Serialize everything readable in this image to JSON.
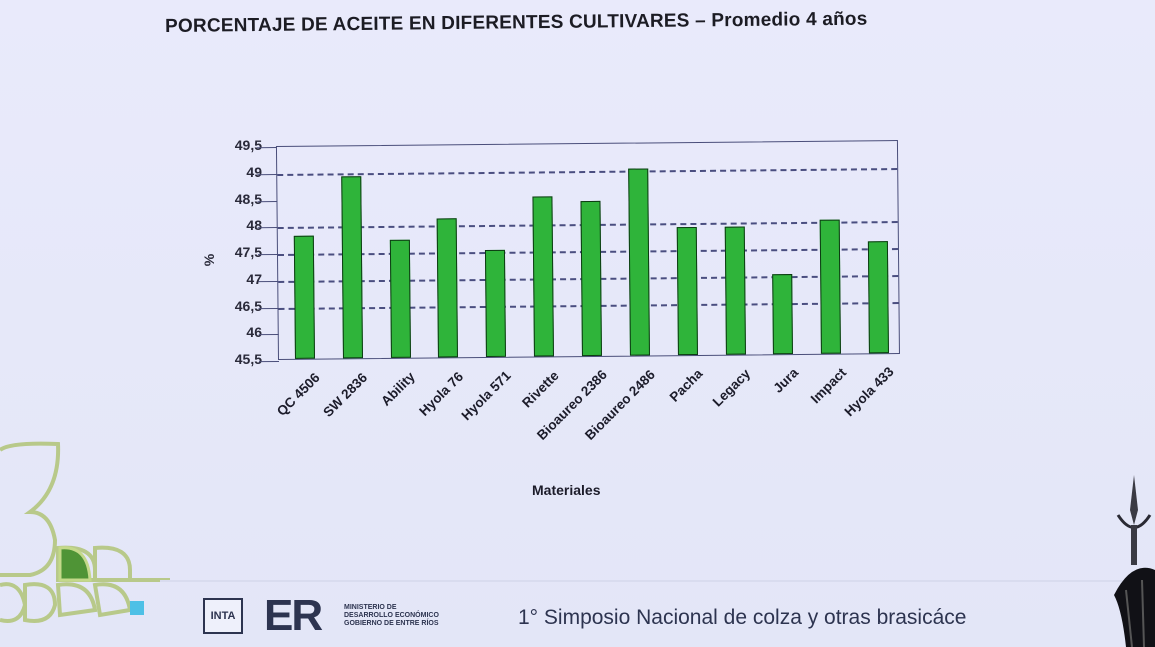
{
  "slide": {
    "title": "PORCENTAJE DE ACEITE EN DIFERENTES CULTIVARES – Promedio 4 años",
    "footer": {
      "inta_logo": "INTA",
      "er_logo": "ER",
      "ministry_lines": [
        "MINISTERIO DE",
        "DESARROLLO ECONÓMICO",
        "GOBIERNO DE ENTRE RÍOS"
      ],
      "event": "1° Simposio Nacional de colza y otras brasicáce"
    }
  },
  "chart_data": {
    "type": "bar",
    "title": "PORCENTAJE DE ACEITE EN DIFERENTES CULTIVARES – Promedio 4 años",
    "xlabel": "Materiales",
    "ylabel": "%",
    "ylim": [
      45.5,
      49.5
    ],
    "yticks": [
      "45,5",
      "46",
      "46,5",
      "47",
      "47,5",
      "48",
      "48,5",
      "49",
      "49,5"
    ],
    "grid": true,
    "gridlines": [
      46.5,
      47,
      47.5,
      48,
      49
    ],
    "bar_color": "#2fb43a",
    "categories": [
      "QC 4506",
      "SW 2836",
      "Ability",
      "Hyola 76",
      "Hyola 571",
      "Rivette",
      "Bioaureo 2386",
      "Bioaureo 2486",
      "Pacha",
      "Legacy",
      "Jura",
      "Impact",
      "Hyola 433"
    ],
    "values": [
      47.8,
      48.9,
      47.7,
      48.1,
      47.5,
      48.5,
      48.4,
      49.0,
      47.9,
      47.9,
      47.0,
      48.0,
      47.6
    ]
  }
}
